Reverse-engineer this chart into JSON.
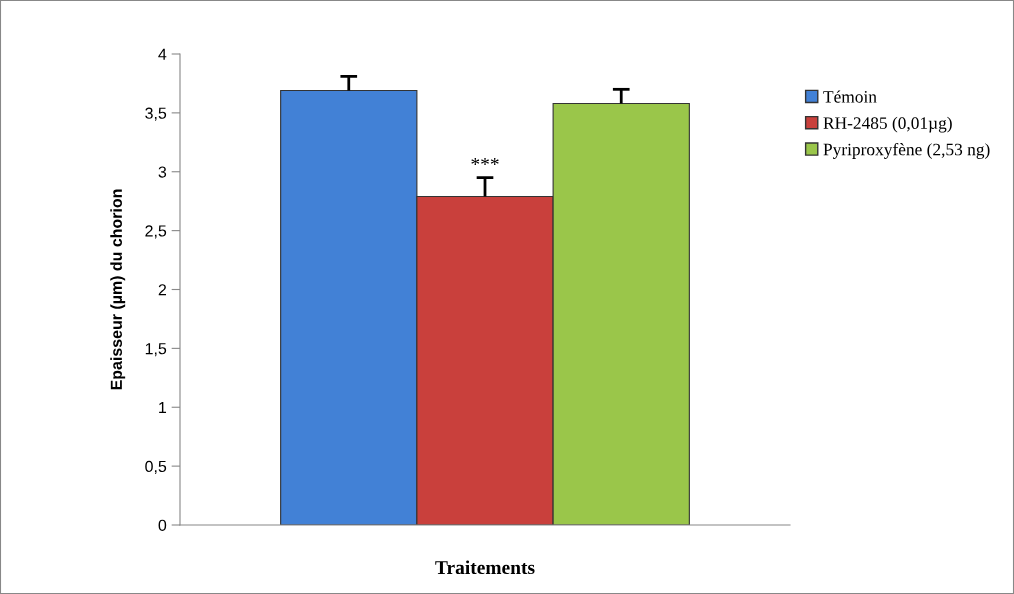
{
  "chart_data": {
    "type": "bar",
    "xlabel": "Traitements",
    "ylabel": "Epaisseur (µm) du chorion",
    "categories": [
      null
    ],
    "series": [
      {
        "name": "Témoin",
        "color": "#4281d6",
        "values": [
          3.69
        ],
        "errors": [
          [
            3.69,
            3.81
          ]
        ]
      },
      {
        "name": "RH-2485 (0,01µg)",
        "color": "#c9403c",
        "values": [
          2.79
        ],
        "errors": [
          [
            2.79,
            2.95
          ]
        ]
      },
      {
        "name": "Pyriproxyfène (2,53 ng)",
        "color": "#9ac64a",
        "values": [
          3.58
        ],
        "errors": [
          [
            3.58,
            3.7
          ]
        ]
      }
    ],
    "ylim": [
      0,
      4
    ],
    "yticks": [
      0,
      {
        "value": 0.5,
        "label": "0,5"
      },
      1,
      {
        "value": 1.5,
        "label": "1,5"
      },
      2,
      {
        "value": 2.5,
        "label": "2,5"
      },
      3,
      {
        "value": 3.5,
        "label": "3,5"
      },
      4
    ],
    "annotations": [
      "***"
    ],
    "legend": "right",
    "grid": false
  }
}
